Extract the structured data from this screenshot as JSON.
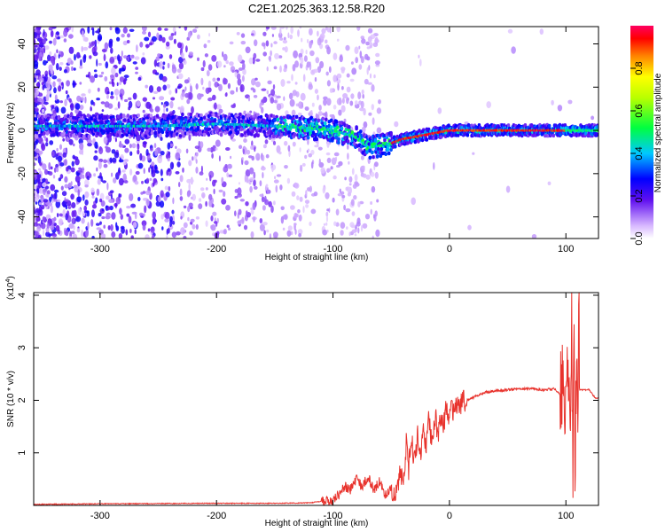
{
  "title": "C2E1.2025.363.12.58.R20",
  "chart_data": [
    {
      "type": "heatmap",
      "xlabel": "Height of straight line (km)",
      "ylabel": "Frequency (Hz)",
      "xlim": [
        -357,
        128
      ],
      "ylim": [
        -50,
        48
      ],
      "xticks": [
        -300,
        -200,
        -100,
        0,
        100
      ],
      "yticks": [
        -40,
        -20,
        0,
        20,
        40
      ],
      "xtick_labels": [
        "-300",
        "-200",
        "-100",
        "0",
        "100"
      ],
      "ytick_labels": [
        "-40",
        "-20",
        "0",
        "20",
        "40"
      ],
      "ridge_frequency": {
        "height_km": [
          -350,
          -300,
          -250,
          -200,
          -150,
          -120,
          -100,
          -80,
          -70,
          -60,
          -50,
          -40,
          -30,
          -20,
          -10,
          0,
          20,
          60,
          100,
          110,
          128
        ],
        "freq_hz": [
          2,
          2,
          2,
          3,
          2,
          1,
          0,
          -3,
          -8,
          -7,
          -6,
          -4,
          -3,
          -2,
          -1,
          0,
          0,
          0,
          0,
          0,
          0
        ]
      },
      "colorbar": {
        "label": "Normalized spectral amplitude",
        "range": [
          0.0,
          1.0
        ],
        "ticks": [
          0.0,
          0.2,
          0.4,
          0.6,
          0.8
        ],
        "tick_labels": [
          "0.0",
          "0.2",
          "0.4",
          "0.6",
          "0.8"
        ],
        "colors": [
          "#ffffff",
          "#c080ff",
          "#6010f0",
          "#0000ff",
          "#00c8ff",
          "#00ff40",
          "#ffff00",
          "#ff8000",
          "#ff0000",
          "#ff0060"
        ]
      }
    },
    {
      "type": "line",
      "xlabel": "Height of straight line (km)",
      "ylabel": "SNR (10 * v/v)",
      "multiplier_label": "(x10",
      "multiplier_exp": "4",
      "xlim": [
        -357,
        128
      ],
      "ylim": [
        0,
        4.05
      ],
      "xticks": [
        -300,
        -200,
        -100,
        0,
        100
      ],
      "yticks": [
        1,
        2,
        3,
        4
      ],
      "xtick_labels": [
        "-300",
        "-200",
        "-100",
        "0",
        "100"
      ],
      "ytick_labels": [
        "1",
        "2",
        "3",
        "4"
      ],
      "color": "#e8322c",
      "series": [
        {
          "name": "SNR",
          "x": [
            -357,
            -300,
            -200,
            -150,
            -120,
            -100,
            -95,
            -90,
            -85,
            -80,
            -75,
            -70,
            -65,
            -60,
            -55,
            -50,
            -45,
            -42,
            -40,
            -37,
            -35,
            -33,
            -30,
            -27,
            -25,
            -22,
            -20,
            -18,
            -15,
            -12,
            -10,
            -8,
            -5,
            -3,
            0,
            5,
            10,
            15,
            20,
            25,
            30,
            40,
            50,
            60,
            70,
            80,
            90,
            95,
            98,
            100,
            102,
            104,
            105,
            106,
            107,
            108,
            109,
            110,
            111,
            112,
            115,
            120,
            125,
            128
          ],
          "y": [
            0.02,
            0.03,
            0.04,
            0.04,
            0.05,
            0.1,
            0.2,
            0.35,
            0.3,
            0.5,
            0.35,
            0.55,
            0.3,
            0.45,
            0.2,
            0.3,
            0.2,
            0.7,
            0.3,
            1.2,
            0.7,
            1.3,
            0.8,
            1.4,
            1.0,
            1.5,
            1.1,
            1.6,
            1.2,
            1.7,
            1.3,
            1.7,
            1.5,
            1.8,
            1.75,
            1.85,
            1.95,
            2.0,
            2.05,
            2.1,
            2.15,
            2.18,
            2.2,
            2.22,
            2.22,
            2.2,
            2.22,
            2.1,
            2.4,
            1.8,
            2.9,
            0.6,
            3.9,
            0.2,
            3.4,
            0.1,
            2.9,
            1.2,
            3.75,
            2.2,
            2.2,
            2.2,
            2.05,
            2.05
          ]
        }
      ]
    }
  ]
}
